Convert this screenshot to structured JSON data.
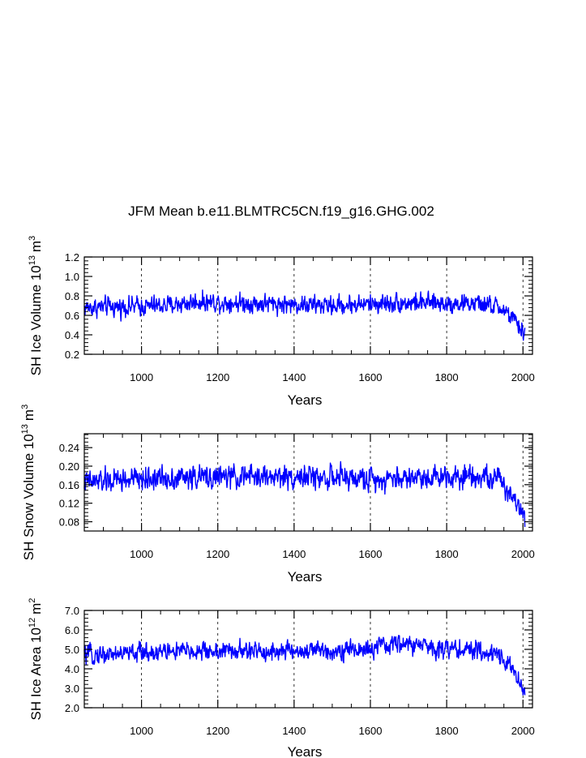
{
  "chart_data": [
    {
      "type": "line",
      "title": "JFM Mean b.e11.BLMTRC5CN.f19_g16.GHG.002",
      "ylabel_main": "SH Ice Volume 10",
      "ylabel_exp": "13",
      "ylabel_unit": "m",
      "ylabel_unit_exp": "3",
      "xlabel": "Years",
      "xlim": [
        850,
        2025
      ],
      "ylim": [
        0.2,
        1.2
      ],
      "xticks": [
        1000,
        1200,
        1400,
        1600,
        1800,
        2000
      ],
      "xtick_labels": [
        "1000",
        "1200",
        "1400",
        "1600",
        "1800",
        "2000"
      ],
      "yticks": [
        0.2,
        0.4,
        0.6,
        0.8,
        1.0,
        1.2
      ],
      "ytick_labels": [
        "0.2",
        "0.4",
        "0.6",
        "0.8",
        "1.0",
        "1.2"
      ],
      "series": [
        {
          "name": "SH Ice Volume",
          "color": "#0000ff",
          "x_start": 850,
          "x_end": 2005,
          "baseline": 0.7,
          "noise": 0.085,
          "anchors": [
            [
              850,
              0.68
            ],
            [
              1060,
              0.7
            ],
            [
              1150,
              0.74
            ],
            [
              1500,
              0.7
            ],
            [
              1660,
              0.73
            ],
            [
              1880,
              0.72
            ],
            [
              1940,
              0.68
            ],
            [
              1970,
              0.58
            ],
            [
              1990,
              0.47
            ],
            [
              2005,
              0.42
            ]
          ]
        }
      ]
    },
    {
      "type": "line",
      "title": "",
      "ylabel_main": "SH Snow Volume 10",
      "ylabel_exp": "13",
      "ylabel_unit": "m",
      "ylabel_unit_exp": "3",
      "xlabel": "Years",
      "xlim": [
        850,
        2025
      ],
      "ylim": [
        0.06,
        0.27
      ],
      "xticks": [
        1000,
        1200,
        1400,
        1600,
        1800,
        2000
      ],
      "xtick_labels": [
        "1000",
        "1200",
        "1400",
        "1600",
        "1800",
        "2000"
      ],
      "yticks": [
        0.08,
        0.12,
        0.16,
        0.2,
        0.24
      ],
      "ytick_labels": [
        "0.08",
        "0.12",
        "0.16",
        "0.20",
        "0.24"
      ],
      "series": [
        {
          "name": "SH Snow Volume",
          "color": "#0000ff",
          "x_start": 850,
          "x_end": 2005,
          "baseline": 0.173,
          "noise": 0.022,
          "anchors": [
            [
              850,
              0.165
            ],
            [
              1060,
              0.175
            ],
            [
              1400,
              0.178
            ],
            [
              1600,
              0.172
            ],
            [
              1870,
              0.182
            ],
            [
              1940,
              0.17
            ],
            [
              1970,
              0.14
            ],
            [
              1990,
              0.115
            ],
            [
              2005,
              0.09
            ]
          ]
        }
      ]
    },
    {
      "type": "line",
      "title": "",
      "ylabel_main": "SH Ice Area 10",
      "ylabel_exp": "12",
      "ylabel_unit": "m",
      "ylabel_unit_exp": "2",
      "xlabel": "Years",
      "xlim": [
        850,
        2025
      ],
      "ylim": [
        2.0,
        7.0
      ],
      "xticks": [
        1000,
        1200,
        1400,
        1600,
        1800,
        2000
      ],
      "xtick_labels": [
        "1000",
        "1200",
        "1400",
        "1600",
        "1800",
        "2000"
      ],
      "yticks": [
        2.0,
        3.0,
        4.0,
        5.0,
        6.0,
        7.0
      ],
      "ytick_labels": [
        "2.0",
        "3.0",
        "4.0",
        "5.0",
        "6.0",
        "7.0"
      ],
      "series": [
        {
          "name": "SH Ice Area",
          "color": "#0000ff",
          "x_start": 850,
          "x_end": 2005,
          "baseline": 4.85,
          "noise": 0.42,
          "anchors": [
            [
              850,
              4.7
            ],
            [
              1060,
              4.9
            ],
            [
              1400,
              4.9
            ],
            [
              1600,
              5.0
            ],
            [
              1670,
              5.3
            ],
            [
              1880,
              4.9
            ],
            [
              1945,
              4.7
            ],
            [
              1970,
              4.0
            ],
            [
              1990,
              3.3
            ],
            [
              2005,
              2.9
            ]
          ]
        }
      ]
    }
  ]
}
